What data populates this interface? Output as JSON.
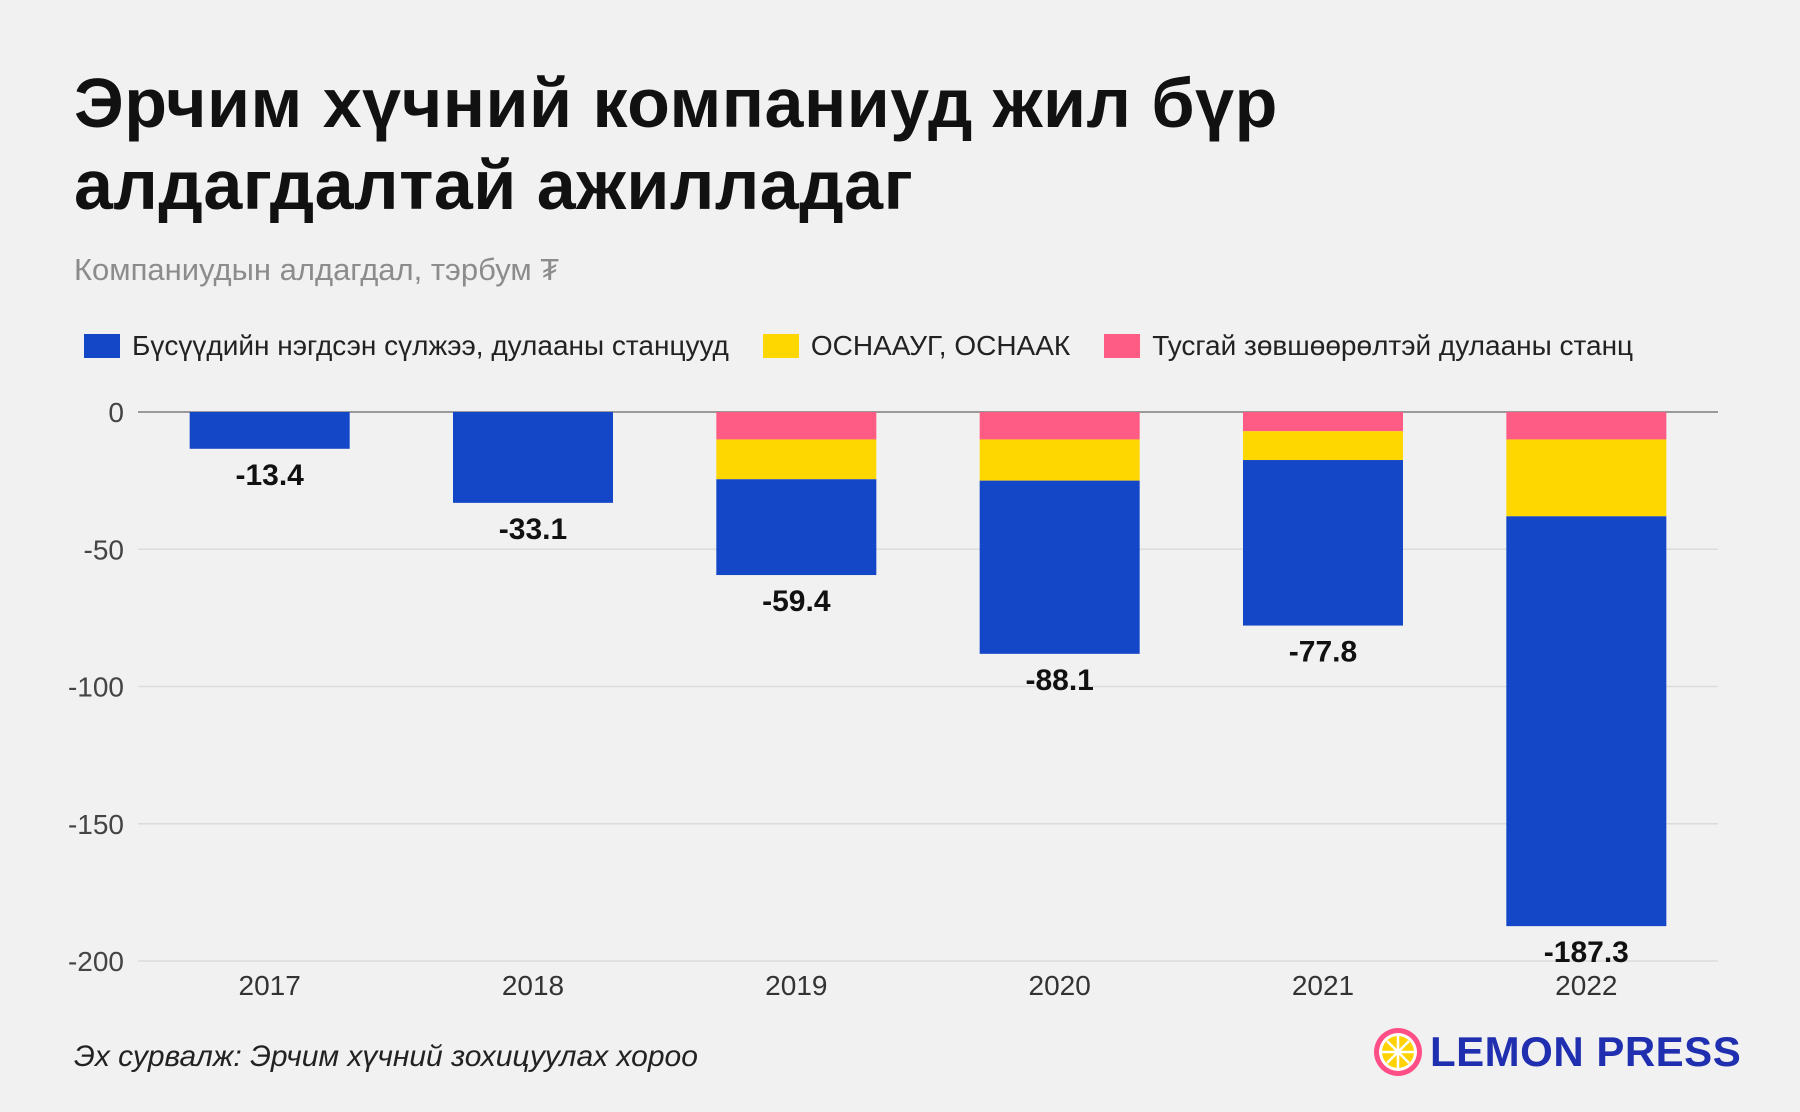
{
  "header": {
    "title_line1": "Эрчим хүчний компаниуд жил бүр",
    "title_line2": "алдагдалтай ажилладаг",
    "subtitle": "Компаниудын алдагдал, тэрбум ₮"
  },
  "legend": [
    {
      "label": "Бүсүүдийн нэгдсэн сүлжээ, дулааны станцууд",
      "color": "#1446c8"
    },
    {
      "label": "ОСНААУГ, ОСНААК",
      "color": "#ffd700"
    },
    {
      "label": "Тусгай зөвшөөрөлтэй дулааны станц",
      "color": "#ff5c85"
    }
  ],
  "chart_data": {
    "type": "bar",
    "stacked": true,
    "categories": [
      "2017",
      "2018",
      "2019",
      "2020",
      "2021",
      "2022"
    ],
    "series": [
      {
        "name": "Тусгай зөвшөөрөлтэй дулааны станц",
        "color": "#ff5c85",
        "values": [
          0,
          0,
          -10,
          -10,
          -7,
          -10
        ]
      },
      {
        "name": "ОСНААУГ, ОСНААК",
        "color": "#ffd700",
        "values": [
          0,
          0,
          -14.5,
          -15,
          -10.5,
          -28
        ]
      },
      {
        "name": "Бүсүүдийн нэгдсэн сүлжээ, дулааны станцууд",
        "color": "#1446c8",
        "values": [
          -13.4,
          -33.1,
          -34.9,
          -63.1,
          -60.3,
          -149.3
        ]
      }
    ],
    "totals": [
      -13.4,
      -33.1,
      -59.4,
      -88.1,
      -77.8,
      -187.3
    ],
    "total_labels": [
      "-13.4",
      "-33.1",
      "-59.4",
      "-88.1",
      "-77.8",
      "-187.3"
    ],
    "ylim": [
      -200,
      0
    ],
    "yticks": [
      0,
      -50,
      -100,
      -150,
      -200
    ],
    "ytick_labels": [
      "0",
      "-50",
      "-100",
      "-150",
      "-200"
    ],
    "grid": true,
    "legend_position": "top"
  },
  "footer": {
    "source": "Эх сурвалж: Эрчим хүчний зохицуулах хороо",
    "logo_text": "LEMON PRESS"
  }
}
